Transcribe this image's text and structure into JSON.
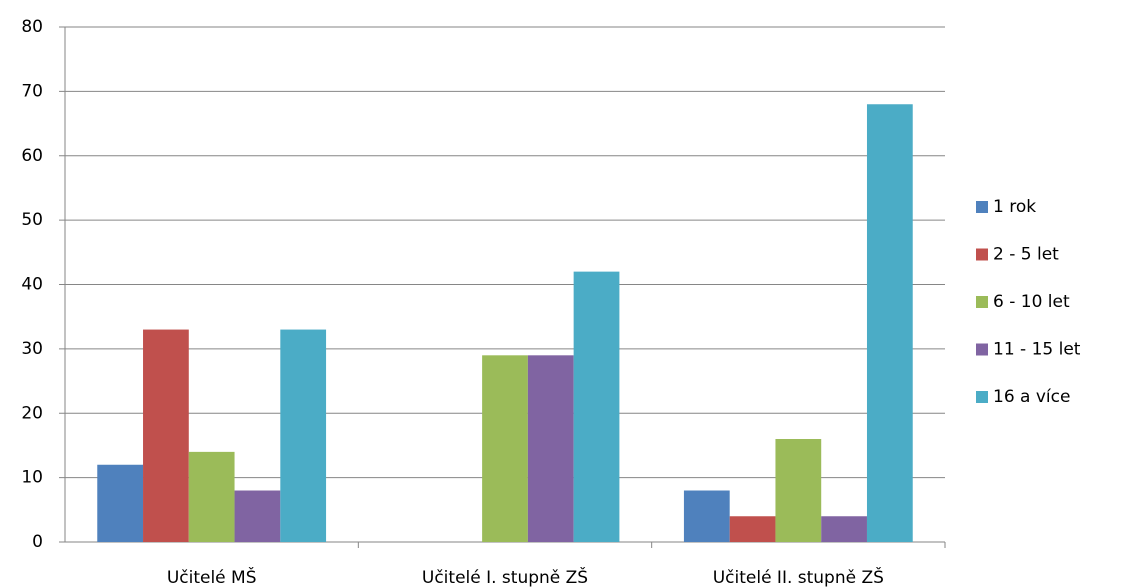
{
  "chart_data": {
    "type": "bar",
    "categories": [
      "Učitelé MŠ",
      "Učitelé I. stupně ZŠ",
      "Učitelé II. stupně ZŠ"
    ],
    "series": [
      {
        "name": "1 rok",
        "color": "#4f81bd",
        "values": [
          12,
          0,
          8
        ]
      },
      {
        "name": "2 - 5 let",
        "color": "#c0504d",
        "values": [
          33,
          0,
          4
        ]
      },
      {
        "name": "6 - 10 let",
        "color": "#9bbb59",
        "values": [
          14,
          29,
          16
        ]
      },
      {
        "name": "11 - 15 let",
        "color": "#8064a2",
        "values": [
          8,
          29,
          4
        ]
      },
      {
        "name": "16 a více",
        "color": "#4bacc6",
        "values": [
          33,
          42,
          68
        ]
      }
    ],
    "ylim": [
      0,
      80
    ],
    "yticks": [
      0,
      10,
      20,
      30,
      40,
      50,
      60,
      70,
      80
    ],
    "grid": true,
    "legend": "right"
  }
}
